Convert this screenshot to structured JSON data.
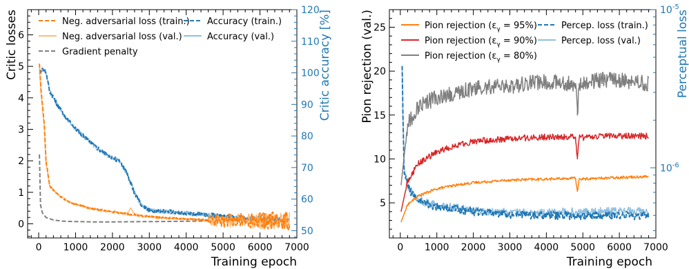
{
  "colors": {
    "orange": "#ff7f0e",
    "light_orange": "#ffbb78",
    "gray": "#7f7f7f",
    "blue": "#1f77b4",
    "light_blue": "#8fbfe0",
    "red": "#d62728",
    "axis_blue": "#1f77b4"
  },
  "chart_data": [
    {
      "type": "line",
      "xlabel": "Training epoch",
      "ylabel": "Critic losses",
      "y2label": "Critic accuracy [%]",
      "xlim": [
        -300,
        7000
      ],
      "ylim": [
        -0.45,
        6.8
      ],
      "y2lim": [
        47.7,
        120
      ],
      "xticks": [
        0,
        1000,
        2000,
        3000,
        4000,
        5000,
        6000,
        7000
      ],
      "yticks": [
        0,
        1,
        2,
        3,
        4,
        5,
        6
      ],
      "y2ticks": [
        50,
        60,
        70,
        80,
        90,
        100,
        110,
        120
      ],
      "legend_position": "top",
      "grid": false,
      "series": [
        {
          "name": "Neg. adversarial loss (train.)",
          "axis": "left",
          "style": "dashed",
          "color": "orange",
          "x": [
            20,
            60,
            100,
            150,
            200,
            300,
            500,
            800,
            1200,
            1600,
            2000,
            2500,
            3000,
            3500,
            4000,
            4500,
            5000,
            5500,
            6000,
            6500,
            6800
          ],
          "y": [
            5.1,
            4.3,
            3.8,
            3.2,
            2.0,
            1.2,
            0.95,
            0.7,
            0.55,
            0.45,
            0.38,
            0.3,
            0.22,
            0.18,
            0.15,
            0.12,
            0.1,
            0.1,
            0.1,
            0.1,
            0.1
          ]
        },
        {
          "name": "Neg. adversarial loss (val.)",
          "axis": "left",
          "style": "solid",
          "color": "light_orange",
          "x": [
            20,
            60,
            100,
            150,
            200,
            300,
            500,
            800,
            1200,
            1600,
            2000,
            2400,
            2500,
            2600,
            3000,
            3500,
            4000,
            4500,
            5000,
            5500,
            6000,
            6500,
            6800
          ],
          "y": [
            5.0,
            4.2,
            3.7,
            3.1,
            1.9,
            1.2,
            0.95,
            0.7,
            0.55,
            0.45,
            0.38,
            0.33,
            0.5,
            0.3,
            0.22,
            0.18,
            0.15,
            0.12,
            0.1,
            0.1,
            0.1,
            0.1,
            0.1
          ]
        },
        {
          "name": "Gradient penalty",
          "axis": "left",
          "style": "dashed",
          "color": "gray",
          "x": [
            20,
            50,
            100,
            200,
            400,
            700,
            1000,
            1500,
            2000,
            3000,
            4000,
            5000,
            6000,
            6800
          ],
          "y": [
            2.2,
            0.6,
            0.35,
            0.2,
            0.12,
            0.08,
            0.07,
            0.06,
            0.06,
            0.07,
            0.08,
            0.1,
            0.12,
            0.12
          ]
        },
        {
          "name": "Accuracy (train.)",
          "axis": "right",
          "style": "dashed",
          "color": "blue",
          "x": [
            20,
            100,
            200,
            300,
            500,
            800,
            1200,
            1600,
            2000,
            2200,
            2400,
            2600,
            2800,
            3000,
            3500,
            4000,
            4500,
            5000,
            5500,
            6000,
            6500,
            6800
          ],
          "y": [
            100,
            101,
            100.5,
            94,
            90,
            85,
            80,
            76,
            73,
            72,
            68,
            62,
            58,
            56.5,
            56,
            55.5,
            55,
            54.5,
            54,
            53.8,
            53.5,
            53.5
          ]
        },
        {
          "name": "Accuracy (val.)",
          "axis": "right",
          "style": "solid",
          "color": "light_blue",
          "x": [
            20,
            100,
            200,
            300,
            500,
            800,
            1200,
            1600,
            2000,
            2200,
            2400,
            2600,
            2800,
            3000,
            3500,
            4000,
            4500,
            5000,
            5500,
            6000,
            6500,
            6800
          ],
          "y": [
            100,
            101,
            100.5,
            94,
            90,
            85,
            80,
            76,
            73,
            72,
            68,
            62,
            58,
            56.5,
            56,
            55.5,
            55,
            54.5,
            54,
            53.8,
            53.5,
            53.5
          ]
        }
      ]
    },
    {
      "type": "line",
      "xlabel": "Training epoch",
      "ylabel": "Pion rejection (val.)",
      "y2label": "Perceptual loss",
      "xlim": [
        -300,
        7000
      ],
      "ylim": [
        1,
        27
      ],
      "y2_scale": "log",
      "y2lim": [
        3.6e-07,
        1e-05
      ],
      "xticks": [
        0,
        1000,
        2000,
        3000,
        4000,
        5000,
        6000,
        7000
      ],
      "yticks": [
        5,
        10,
        15,
        20,
        25
      ],
      "y2ticks": [
        "10^-6",
        "10^-5"
      ],
      "legend_position": "top",
      "grid": false,
      "series": [
        {
          "name": "Pion rejection (ε_γ = 95%)",
          "axis": "left",
          "style": "solid",
          "color": "orange",
          "x": [
            20,
            200,
            500,
            1000,
            1500,
            2000,
            3000,
            4000,
            4800,
            4850,
            4900,
            5500,
            6000,
            6800
          ],
          "y": [
            2.8,
            4.8,
            5.8,
            6.6,
            7.0,
            7.3,
            7.6,
            7.7,
            7.8,
            6.3,
            7.7,
            7.8,
            7.9,
            8.0
          ]
        },
        {
          "name": "Pion rejection (ε_γ = 90%)",
          "axis": "left",
          "style": "solid",
          "color": "red",
          "x": [
            20,
            200,
            500,
            1000,
            1500,
            2000,
            3000,
            4000,
            4800,
            4850,
            4900,
            5500,
            6000,
            6800
          ],
          "y": [
            4.0,
            7.5,
            9.5,
            10.8,
            11.5,
            12.0,
            12.3,
            12.5,
            12.5,
            10.0,
            12.4,
            12.6,
            12.6,
            12.6
          ]
        },
        {
          "name": "Pion rejection (ε_γ = 80%)",
          "axis": "left",
          "style": "solid",
          "color": "gray",
          "x": [
            20,
            200,
            500,
            1000,
            1500,
            2000,
            3000,
            4000,
            4800,
            4850,
            4900,
            5500,
            6000,
            6800
          ],
          "y": [
            7.0,
            14.0,
            16.0,
            17.0,
            17.5,
            18.0,
            18.3,
            18.8,
            18.5,
            15.0,
            18.6,
            19.0,
            19.0,
            18.5
          ]
        },
        {
          "name": "Percep. loss (train.)",
          "axis": "right",
          "style": "dashed",
          "color": "blue",
          "x": [
            50,
            70,
            100,
            150,
            200,
            300,
            500,
            800,
            1200,
            2000,
            3000,
            4000,
            5000,
            6000,
            6800
          ],
          "y": [
            4.5e-06,
            2.2e-06,
            1e-06,
            8.5e-07,
            7.8e-07,
            7e-07,
            6.2e-07,
            5.8e-07,
            5.6e-07,
            5.3e-07,
            5.1e-07,
            5e-07,
            5e-07,
            5e-07,
            5e-07
          ]
        },
        {
          "name": "Percep. loss (val.)",
          "axis": "right",
          "style": "solid",
          "color": "light_blue",
          "x": [
            50,
            70,
            100,
            150,
            200,
            300,
            500,
            800,
            1200,
            2000,
            3000,
            4000,
            5000,
            6000,
            6800
          ],
          "y": [
            4.4e-06,
            2.1e-06,
            1e-06,
            8.6e-07,
            7.9e-07,
            7.1e-07,
            6.3e-07,
            5.9e-07,
            5.7e-07,
            5.4e-07,
            5.2e-07,
            5.2e-07,
            5.3e-07,
            5.3e-07,
            5.3e-07
          ]
        }
      ]
    }
  ]
}
